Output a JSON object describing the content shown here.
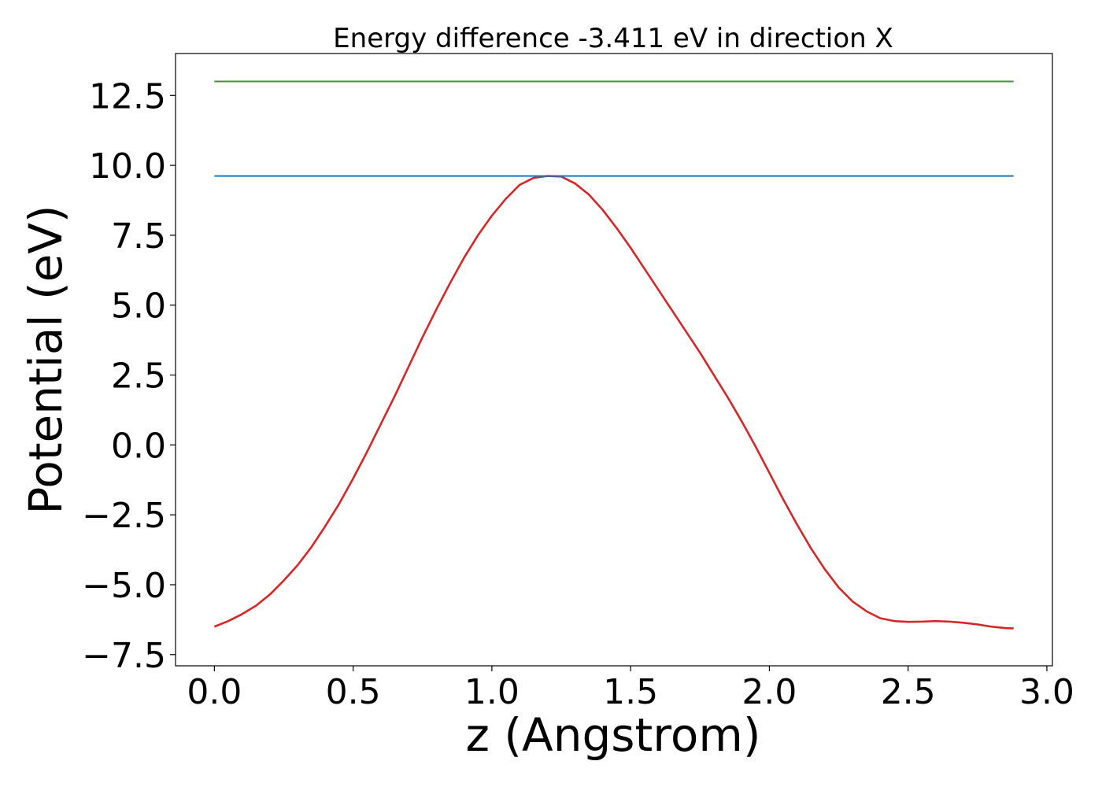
{
  "chart_data": {
    "type": "line",
    "title": "Energy difference -3.411 eV in direction X",
    "xlabel": "z (Angstrom)",
    "ylabel": "Potential (eV)",
    "xlim": [
      -0.14,
      3.02
    ],
    "ylim": [
      -7.9,
      14.0
    ],
    "x_ticks": [
      0.0,
      0.5,
      1.0,
      1.5,
      2.0,
      2.5,
      3.0
    ],
    "x_tick_labels": [
      "0.0",
      "0.5",
      "1.0",
      "1.5",
      "2.0",
      "2.5",
      "3.0"
    ],
    "y_ticks": [
      -7.5,
      -5.0,
      -2.5,
      0.0,
      2.5,
      5.0,
      7.5,
      10.0,
      12.5
    ],
    "y_tick_labels": [
      "−7.5",
      "−5.0",
      "−2.5",
      "0.0",
      "2.5",
      "5.0",
      "7.5",
      "10.0",
      "12.5"
    ],
    "grid": false,
    "legend": "none",
    "series": [
      {
        "color": "#d62728",
        "x": [
          0.0,
          0.05,
          0.1,
          0.15,
          0.2,
          0.25,
          0.3,
          0.35,
          0.4,
          0.45,
          0.5,
          0.55,
          0.6,
          0.65,
          0.7,
          0.75,
          0.8,
          0.85,
          0.9,
          0.95,
          1.0,
          1.05,
          1.1,
          1.15,
          1.2,
          1.25,
          1.3,
          1.35,
          1.4,
          1.45,
          1.5,
          1.55,
          1.6,
          1.65,
          1.7,
          1.75,
          1.8,
          1.85,
          1.9,
          1.95,
          2.0,
          2.05,
          2.1,
          2.15,
          2.2,
          2.25,
          2.3,
          2.35,
          2.4,
          2.45,
          2.5,
          2.55,
          2.6,
          2.65,
          2.7,
          2.75,
          2.8,
          2.85,
          2.88
        ],
        "y": [
          -6.5,
          -6.3,
          -6.05,
          -5.75,
          -5.35,
          -4.85,
          -4.3,
          -3.65,
          -2.9,
          -2.1,
          -1.2,
          -0.25,
          0.75,
          1.75,
          2.8,
          3.85,
          4.85,
          5.8,
          6.7,
          7.5,
          8.2,
          8.8,
          9.3,
          9.55,
          9.62,
          9.6,
          9.35,
          8.95,
          8.4,
          7.75,
          7.05,
          6.3,
          5.55,
          4.8,
          4.05,
          3.3,
          2.5,
          1.7,
          0.85,
          -0.05,
          -1.0,
          -1.95,
          -2.85,
          -3.7,
          -4.45,
          -5.1,
          -5.6,
          -5.95,
          -6.2,
          -6.3,
          -6.33,
          -6.32,
          -6.3,
          -6.32,
          -6.36,
          -6.42,
          -6.5,
          -6.55,
          -6.56
        ]
      },
      {
        "color": "#1f77b4",
        "x": [
          0.0,
          2.88
        ],
        "y": [
          9.62,
          9.62
        ]
      },
      {
        "color": "#2ca02c",
        "x": [
          0.0,
          2.88
        ],
        "y": [
          13.0,
          13.0
        ]
      }
    ]
  }
}
